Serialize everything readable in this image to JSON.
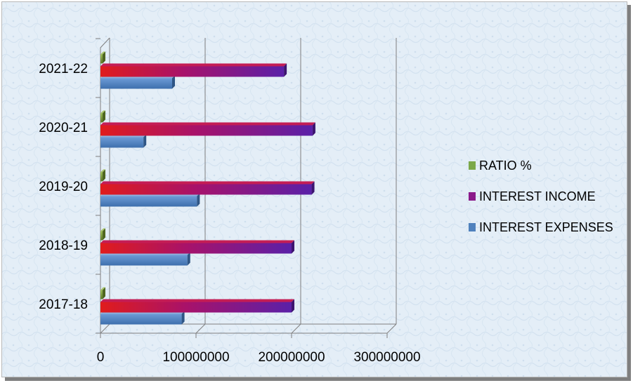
{
  "chart_data": {
    "type": "bar",
    "orientation": "horizontal",
    "three_d": true,
    "categories": [
      "2017-18",
      "2018-19",
      "2019-20",
      "2020-21",
      "2021-22"
    ],
    "series": [
      {
        "name": "INTEREST EXPENSES",
        "color": "#4f81bd",
        "values": [
          85000000,
          91000000,
          101000000,
          45000000,
          75000000
        ]
      },
      {
        "name": "INTEREST INCOME",
        "color": "#7a1ea0",
        "values": [
          200000000,
          200000000,
          221000000,
          222000000,
          192000000
        ]
      },
      {
        "name": "RATIO %",
        "color": "#77933c",
        "values": [
          42,
          45,
          46,
          20,
          39
        ]
      }
    ],
    "x_ticks": [
      "0",
      "100000000",
      "200000000",
      "300000000"
    ],
    "xlim": [
      0,
      300000000
    ],
    "grid": true,
    "legend_position": "right"
  }
}
